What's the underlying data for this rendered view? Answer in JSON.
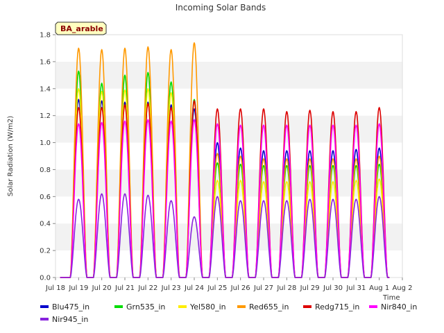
{
  "chart_data": {
    "type": "line",
    "title": "Incoming Solar Bands",
    "ylabel": "Solar Radiation (W/m2)",
    "xlabel": "Time",
    "site_badge": "BA_arable",
    "ylim": [
      0.0,
      1.8
    ],
    "y_ticks": [
      "0.0",
      "0.2",
      "0.4",
      "0.6",
      "0.8",
      "1.0",
      "1.2",
      "1.4",
      "1.6",
      "1.8"
    ],
    "x_ticks": [
      "Jul 18",
      "Jul 19",
      "Jul 20",
      "Jul 21",
      "Jul 22",
      "Jul 23",
      "Jul 24",
      "Jul 25",
      "Jul 26",
      "Jul 27",
      "Jul 28",
      "Jul 29",
      "Jul 30",
      "Jul 31",
      "Aug 1",
      "Aug 2"
    ],
    "x_range_days": [
      "Jul 18",
      "Aug 2"
    ],
    "grid": "horizontal bands",
    "legend_position": "bottom",
    "day_peak_centers": [
      "Jul 19",
      "Jul 20",
      "Jul 21",
      "Jul 22",
      "Jul 23",
      "Jul 24",
      "Jul 25",
      "Jul 26",
      "Jul 27",
      "Jul 28",
      "Jul 29",
      "Jul 30",
      "Jul 31",
      "Aug 1"
    ],
    "series": [
      {
        "name": "Blu475_in",
        "color": "#0000cc",
        "daily_peaks": [
          1.32,
          1.31,
          1.3,
          1.3,
          1.28,
          1.25,
          1.0,
          0.96,
          0.94,
          0.94,
          0.94,
          0.94,
          0.95,
          0.96
        ]
      },
      {
        "name": "Grn535_in",
        "color": "#00dd00",
        "daily_peaks": [
          1.53,
          1.44,
          1.5,
          1.52,
          1.45,
          1.32,
          0.85,
          0.84,
          0.83,
          0.83,
          0.83,
          0.83,
          0.83,
          0.84
        ]
      },
      {
        "name": "Yel580_in",
        "color": "#ffee00",
        "daily_peaks": [
          1.4,
          1.38,
          1.39,
          1.4,
          1.37,
          1.3,
          0.72,
          0.72,
          0.71,
          0.71,
          0.71,
          0.71,
          0.72,
          0.73
        ]
      },
      {
        "name": "Red655_in",
        "color": "#ff9900",
        "daily_peaks": [
          1.7,
          1.69,
          1.7,
          1.71,
          1.69,
          1.74,
          0.92,
          0.9,
          0.88,
          0.88,
          0.88,
          0.88,
          0.88,
          0.9
        ]
      },
      {
        "name": "Redg715_in",
        "color": "#dd0000",
        "daily_peaks": [
          1.26,
          1.26,
          1.28,
          1.29,
          1.26,
          1.31,
          1.25,
          1.25,
          1.25,
          1.23,
          1.24,
          1.23,
          1.23,
          1.26
        ]
      },
      {
        "name": "Nir840_in",
        "color": "#ff00ff",
        "daily_peaks": [
          1.14,
          1.15,
          1.16,
          1.17,
          1.16,
          1.17,
          1.14,
          1.13,
          1.13,
          1.13,
          1.13,
          1.13,
          1.13,
          1.14
        ]
      },
      {
        "name": "Nir945_in",
        "color": "#8822dd",
        "daily_peaks": [
          0.58,
          0.62,
          0.62,
          0.61,
          0.57,
          0.45,
          0.6,
          0.57,
          0.57,
          0.57,
          0.58,
          0.58,
          0.58,
          0.6
        ]
      }
    ]
  }
}
